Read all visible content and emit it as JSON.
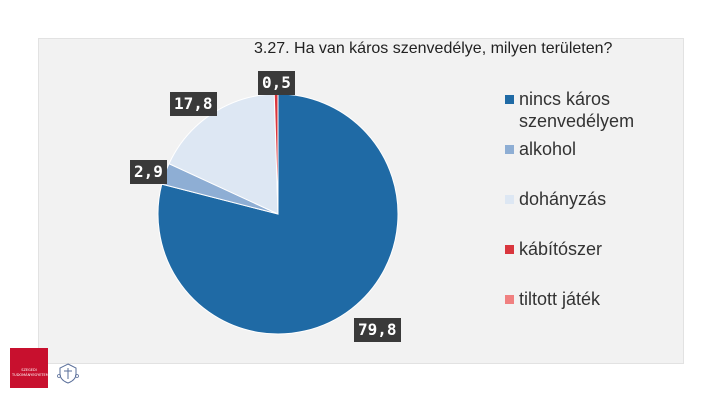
{
  "chart_data": {
    "type": "pie",
    "title": "3.27. Ha van káros szenvedélye, milyen területen?",
    "categories": [
      "nincs káros szenvedélyem",
      "alkohol",
      "dohányzás",
      "kábítószer",
      "tiltott játék"
    ],
    "values": [
      79.8,
      2.9,
      17.8,
      0.5,
      0
    ],
    "value_labels": [
      "79,8",
      "2,9",
      "17,8",
      "0,5",
      ""
    ],
    "colors": [
      "#1f6aa5",
      "#8eaed4",
      "#dde7f3",
      "#d9363e",
      "#f08080"
    ],
    "legend_position": "right"
  },
  "legend": {
    "items": [
      {
        "label": "nincs káros\nszenvedélyem",
        "color": "#1f6aa5"
      },
      {
        "label": "alkohol",
        "color": "#8eaed4"
      },
      {
        "label": "dohányzás",
        "color": "#dde7f3"
      },
      {
        "label": "kábítószer",
        "color": "#d9363e"
      },
      {
        "label": "tiltott játék",
        "color": "#f08080"
      }
    ]
  },
  "logo": {
    "text": "SZEGEDI TUDOMÁNYEGYETEM",
    "icon": "university-logo-icon",
    "crest_icon": "university-crest-icon"
  }
}
